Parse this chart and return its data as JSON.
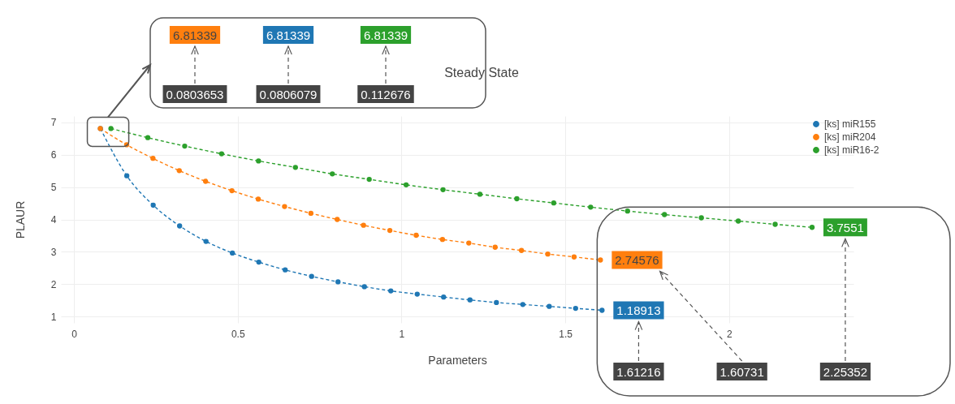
{
  "chart_data": {
    "type": "line",
    "title": "Steady State",
    "xlabel": "Parameters",
    "ylabel": "PLAUR",
    "xlim": [
      -0.04,
      2.38
    ],
    "xticks": [
      0,
      0.5,
      1,
      1.5,
      2
    ],
    "ylim": [
      0.8,
      7.2
    ],
    "yticks": [
      1,
      2,
      3,
      4,
      5,
      6,
      7
    ],
    "grid": true,
    "legend": "top right",
    "marker": "circle",
    "line_style": "dashed",
    "series": [
      {
        "name": "[ks] miR155",
        "color": "#1f77b4",
        "x": [
          0.0806079,
          0.1612158,
          0.2418237,
          0.3224316,
          0.4030395,
          0.4836474,
          0.5642553,
          0.6448632,
          0.7254711,
          0.806079,
          0.8866869,
          0.9672948,
          1.0479027,
          1.1285106,
          1.2091185,
          1.2897264,
          1.3703343,
          1.4509422,
          1.5315501,
          1.61216
        ],
        "values": [
          6.81339,
          5.35,
          4.44,
          3.8,
          3.32,
          2.96,
          2.68,
          2.44,
          2.24,
          2.07,
          1.92,
          1.79,
          1.69,
          1.6,
          1.51,
          1.43,
          1.37,
          1.31,
          1.25,
          1.18913
        ],
        "value_labels": [
          null,
          null,
          null,
          null,
          null,
          null,
          null,
          null,
          null,
          null,
          null,
          null,
          null,
          null,
          null,
          null,
          null,
          null,
          null,
          "1.18913"
        ]
      },
      {
        "name": "[ks] miR204",
        "color": "#ff7f0e",
        "x": [
          0.0803653,
          0.1607306,
          0.2410959,
          0.3214612,
          0.4018265,
          0.4821918,
          0.5625571,
          0.6429224,
          0.7232877,
          0.803653,
          0.8840183,
          0.9643836,
          1.0447489,
          1.1251142,
          1.2054795,
          1.2858448,
          1.3662101,
          1.4465754,
          1.5269407,
          1.60731
        ],
        "values": [
          6.81339,
          6.31,
          5.89,
          5.51,
          5.18,
          4.89,
          4.63,
          4.4,
          4.19,
          4.0,
          3.82,
          3.66,
          3.51,
          3.38,
          3.27,
          3.14,
          3.04,
          2.93,
          2.84,
          2.74576
        ],
        "value_labels": [
          null,
          null,
          null,
          null,
          null,
          null,
          null,
          null,
          null,
          null,
          null,
          null,
          null,
          null,
          null,
          null,
          null,
          null,
          null,
          "2.74576"
        ]
      },
      {
        "name": "[ks] miR16-2",
        "color": "#2ca02c",
        "x": [
          0.112676,
          0.225352,
          0.338028,
          0.450704,
          0.56338,
          0.676056,
          0.788732,
          0.901408,
          1.014084,
          1.12676,
          1.239436,
          1.352112,
          1.464788,
          1.577464,
          1.69014,
          1.802816,
          1.915492,
          2.028168,
          2.140844,
          2.25352
        ],
        "values": [
          6.81339,
          6.53,
          6.27,
          6.03,
          5.81,
          5.61,
          5.41,
          5.24,
          5.07,
          4.92,
          4.78,
          4.64,
          4.51,
          4.38,
          4.26,
          4.15,
          4.05,
          3.95,
          3.85,
          3.7551
        ],
        "value_labels": [
          null,
          null,
          null,
          null,
          null,
          null,
          null,
          null,
          null,
          null,
          null,
          null,
          null,
          null,
          null,
          null,
          null,
          null,
          null,
          "3.7551"
        ]
      }
    ],
    "annotations": [
      "6.81339",
      "0.0803653",
      "6.81339",
      "0.0806079",
      "6.81339",
      "0.112676",
      "1.61216",
      "1.60731",
      "2.25352"
    ]
  }
}
